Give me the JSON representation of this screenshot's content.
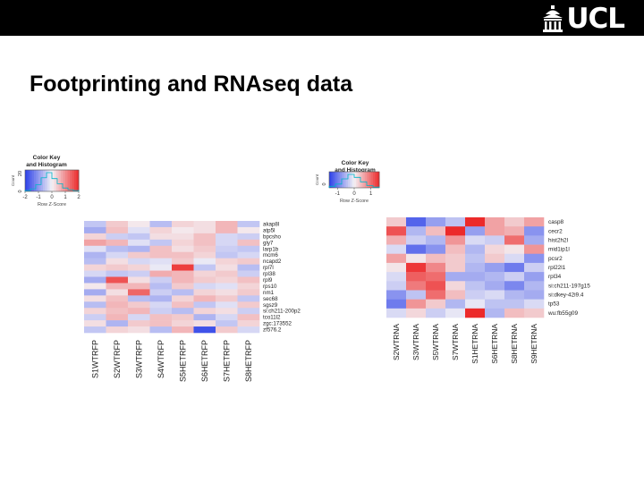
{
  "header": {
    "logo_text": "UCL"
  },
  "slide": {
    "title": "Footprinting and RNAseq data"
  },
  "colors": {
    "header_bg": "#000000",
    "low": "#2b40e8",
    "mid": "#f4f2f6",
    "high": "#ec2a2a",
    "histogram_line": "#00b4c8"
  },
  "chart_data": [
    {
      "type": "heatmap",
      "name": "Footprinting (RFP)",
      "color_key": {
        "title_line1": "Color Key",
        "title_line2": "and Histogram",
        "xlabel": "Row Z-Score",
        "ylabel": "Count",
        "ytick_labels": [
          "0",
          "20"
        ],
        "xtick_labels": [
          "-2",
          "-1",
          "0",
          "1",
          "2"
        ],
        "range": [
          -2,
          2
        ],
        "histogram": [
          1,
          3,
          8,
          16,
          22,
          15,
          9,
          4,
          2,
          1
        ]
      },
      "columns": [
        "S1WTRFP",
        "S2WTRFP",
        "S3WTRFP",
        "S4WTRFP",
        "S5HETRFP",
        "S6HETRFP",
        "S7HETRFP",
        "S8HETRFP"
      ],
      "rows": [
        "akap8l",
        "atp5l",
        "bpcsho",
        "gly7",
        "larp1b",
        "mcm6",
        "ncapd2",
        "rpl7l",
        "rpl38",
        "rpl9",
        "rps10",
        "nm1",
        "sec68",
        "sgsz9",
        "si:ch211-200p2",
        "tco11l2",
        "zgc:173552",
        "zf576.2"
      ],
      "values": [
        [
          -0.5,
          0.4,
          0.1,
          -0.6,
          0.3,
          0.2,
          0.6,
          -0.5
        ],
        [
          -0.8,
          0.5,
          -0.2,
          0.3,
          0.1,
          0.2,
          0.6,
          0.1
        ],
        [
          0.3,
          -0.4,
          -0.5,
          0.2,
          0.2,
          0.5,
          -0.3,
          -0.4
        ],
        [
          0.8,
          0.6,
          -0.2,
          -0.5,
          0.3,
          0.5,
          -0.3,
          0.5
        ],
        [
          -0.2,
          -0.6,
          -0.7,
          0.5,
          0.2,
          0.4,
          -0.4,
          -0.5
        ],
        [
          -0.7,
          -0.3,
          0.4,
          0.5,
          0.5,
          0.3,
          -0.5,
          -0.3
        ],
        [
          -0.6,
          0.2,
          -0.3,
          -0.2,
          0.4,
          -0.1,
          0.3,
          0.4
        ],
        [
          0.3,
          0.4,
          0.3,
          -0.1,
          1.8,
          -0.5,
          0.2,
          -0.6
        ],
        [
          -0.3,
          -0.5,
          -0.4,
          0.7,
          0.6,
          0.3,
          0.4,
          -0.4
        ],
        [
          -0.8,
          1.6,
          0.2,
          -0.4,
          0.6,
          0.4,
          0.3,
          0.5
        ],
        [
          0.1,
          0.6,
          0.6,
          -0.6,
          0.4,
          -0.3,
          -0.2,
          0.3
        ],
        [
          -0.8,
          0.2,
          1.4,
          -0.4,
          -0.6,
          0.3,
          0.2,
          0.4
        ],
        [
          0.2,
          0.5,
          -0.6,
          -0.7,
          0.3,
          0.6,
          0.4,
          -0.5
        ],
        [
          -0.6,
          0.6,
          0.4,
          -0.3,
          0.5,
          -0.5,
          -0.2,
          0.4
        ],
        [
          0.3,
          0.5,
          0.6,
          -0.4,
          -0.6,
          0.3,
          0.2,
          -0.4
        ],
        [
          -0.4,
          0.6,
          -0.3,
          0.5,
          0.4,
          -0.7,
          -0.3,
          0.5
        ],
        [
          0.2,
          -0.7,
          0.4,
          0.5,
          0.3,
          0.2,
          -0.5,
          0.3
        ],
        [
          -0.5,
          0.3,
          0.2,
          -0.6,
          0.6,
          -1.8,
          0.4,
          -0.3
        ]
      ]
    },
    {
      "type": "heatmap",
      "name": "RNAseq (RNA)",
      "color_key": {
        "title_line1": "Color Key",
        "title_line2": "and Histogram",
        "xlabel": "Row Z-Score",
        "ylabel": "Count",
        "ytick_labels": [
          "0"
        ],
        "xtick_labels": [
          "-1",
          "0",
          "1"
        ],
        "range": [
          -1.5,
          1.5
        ],
        "histogram": [
          2,
          5,
          12,
          18,
          14,
          8,
          3,
          1
        ]
      },
      "columns": [
        "S2WTRNA",
        "S3WTRNA",
        "S5WTRNA",
        "S7WTRNA",
        "S1HETRNA",
        "S6HETRNA",
        "S8HETRNA",
        "S9HETRNA"
      ],
      "rows": [
        "casp8",
        "cecr2",
        "hist2h2l",
        "mid1ip1l",
        "pcsr2",
        "rpl22l1",
        "rpl34",
        "si:ch211-197g15",
        "si:dkey-42i9.4",
        "tp53",
        "wu:fb55g09"
      ],
      "values": [
        [
          0.3,
          -1.2,
          -0.7,
          -0.4,
          1.8,
          0.6,
          0.3,
          0.6
        ],
        [
          1.2,
          -0.5,
          0.4,
          1.5,
          -0.7,
          0.6,
          0.5,
          -0.8
        ],
        [
          0.5,
          -0.3,
          -0.5,
          0.7,
          -0.2,
          -0.3,
          1.0,
          -0.6
        ],
        [
          -0.2,
          -1.1,
          -0.8,
          0.4,
          -0.5,
          0.2,
          0.1,
          0.7
        ],
        [
          0.6,
          0.1,
          0.4,
          0.3,
          -0.4,
          0.3,
          -0.2,
          -0.8
        ],
        [
          0.1,
          1.4,
          0.8,
          0.3,
          -0.5,
          -0.7,
          -1.0,
          -0.3
        ],
        [
          -0.2,
          1.1,
          1.0,
          -0.6,
          -0.6,
          -0.5,
          -0.3,
          -0.7
        ],
        [
          -0.3,
          0.9,
          1.2,
          0.2,
          -0.4,
          -0.6,
          -0.9,
          -0.5
        ],
        [
          -0.8,
          -0.4,
          1.0,
          0.4,
          -0.3,
          -0.2,
          -0.5,
          -0.6
        ],
        [
          -1.0,
          0.7,
          0.3,
          -0.5,
          -0.1,
          -0.4,
          -0.4,
          -0.2
        ],
        [
          -0.2,
          0.2,
          -0.3,
          -0.1,
          1.6,
          -0.5,
          0.4,
          0.3
        ]
      ]
    }
  ]
}
